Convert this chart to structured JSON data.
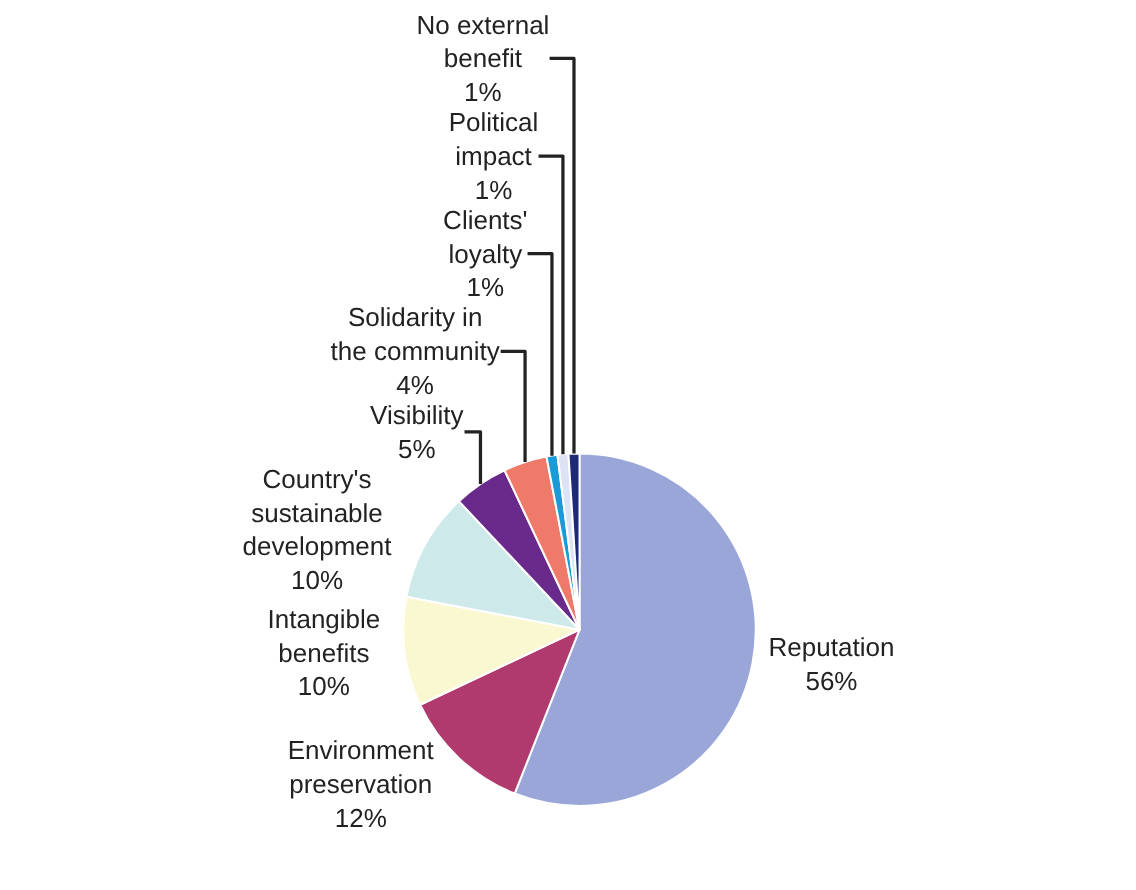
{
  "chart_data": {
    "type": "pie",
    "categories": [
      "Reputation",
      "Environment preservation",
      "Intangible benefits",
      "Country's sustainable development",
      "Visibility",
      "Solidarity in the community",
      "Clients' loyalty",
      "Political impact",
      "No external benefit"
    ],
    "values": [
      56,
      12,
      10,
      10,
      5,
      4,
      1,
      1,
      1
    ],
    "value_labels": [
      "56%",
      "12%",
      "10%",
      "10%",
      "5%",
      "4%",
      "1%",
      "1%",
      "1%"
    ],
    "colors": [
      "#9aa6d8",
      "#b03a6e",
      "#faf8d0",
      "#cde9e9",
      "#6a2a8c",
      "#f07a6a",
      "#1a9ad6",
      "#dde3f5",
      "#1e2a78"
    ],
    "legend": false
  }
}
